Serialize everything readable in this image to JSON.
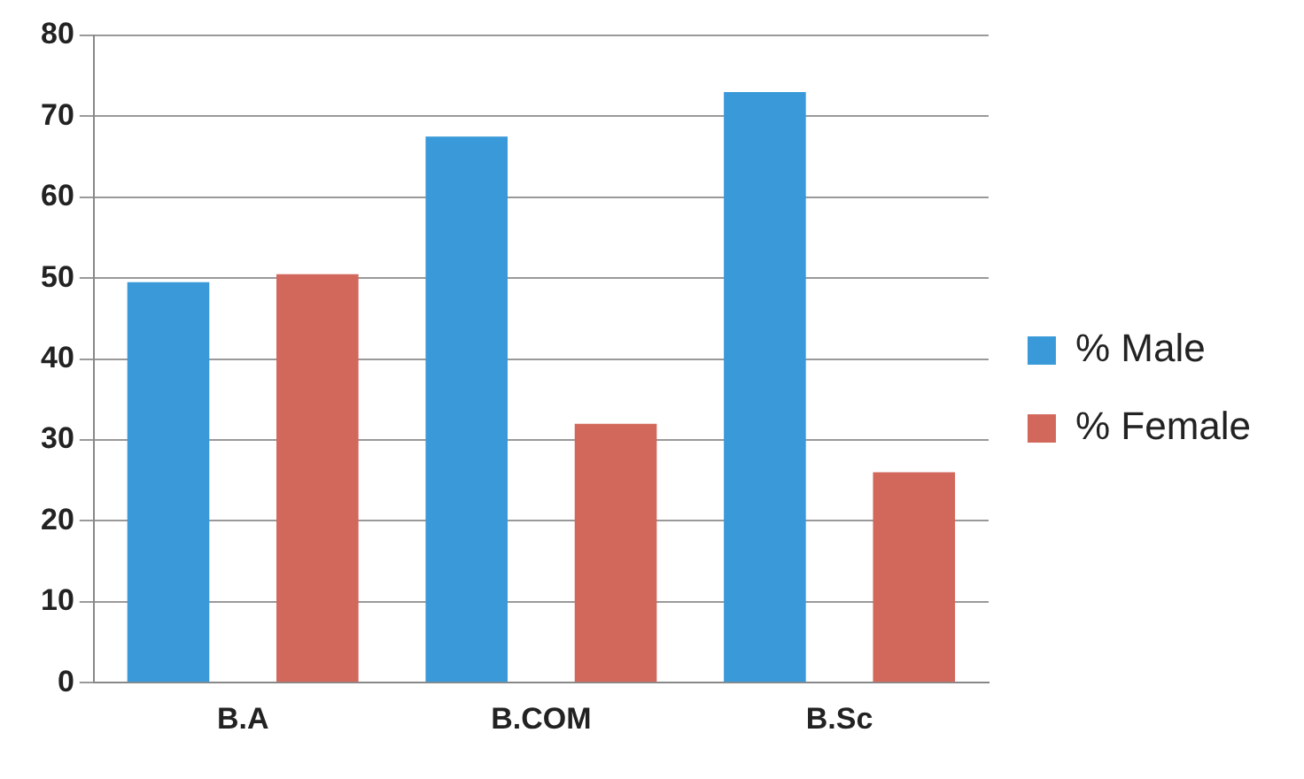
{
  "chart_data": {
    "type": "bar",
    "categories": [
      "B.A",
      "B.COM",
      "B.Sc"
    ],
    "series": [
      {
        "name": "% Male",
        "color": "#3a9ad9",
        "values": [
          49.5,
          67.5,
          73
        ]
      },
      {
        "name": "% Female",
        "color": "#d2675c",
        "values": [
          50.5,
          32,
          26
        ]
      }
    ],
    "ylim": [
      0,
      80
    ],
    "yticks": [
      0,
      10,
      20,
      30,
      40,
      50,
      60,
      70,
      80
    ],
    "grid": "y",
    "legend": "right"
  }
}
